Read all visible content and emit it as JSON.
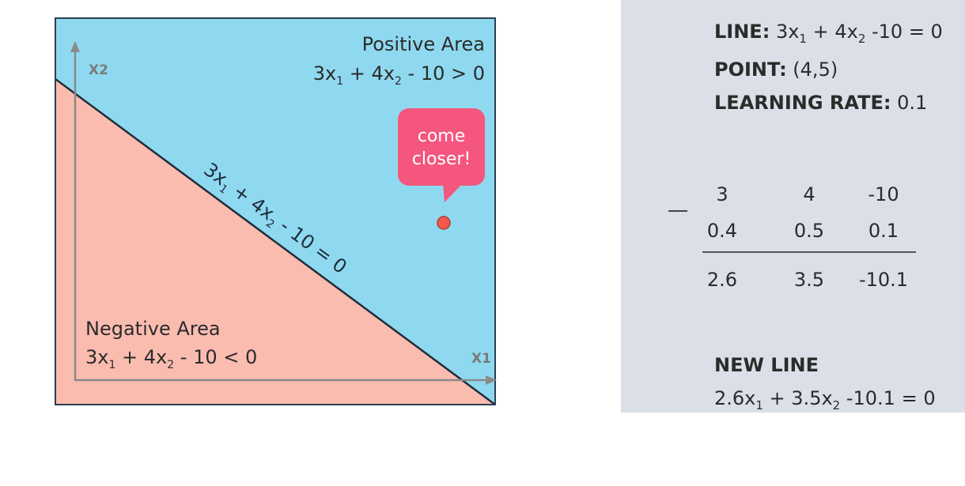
{
  "diagram": {
    "axis_x_label": "X1",
    "axis_y_label": "X2",
    "positive_area": {
      "title": "Positive Area",
      "expr_a": "3x",
      "sub1": "1",
      "expr_b": " + 4x",
      "sub2": "2",
      "expr_c": " - 10 > 0"
    },
    "negative_area": {
      "title": "Negative Area",
      "expr_a": "3x",
      "sub1": "1",
      "expr_b": " + 4x",
      "sub2": "2",
      "expr_c": " - 10 < 0"
    },
    "line_label": {
      "expr_a": "3x",
      "sub1": "1",
      "expr_b": " + 4x",
      "sub2": "2",
      "expr_c": " - 10 = 0"
    },
    "callout": {
      "line1": "come",
      "line2": "closer!"
    },
    "colors": {
      "positive": "#8fd9f0",
      "negative": "#fbbcb0",
      "point": "#f25a4e",
      "callout": "#f4567e",
      "border": "#2c3e50",
      "axis": "#8a8a8a"
    }
  },
  "panel": {
    "line": {
      "label": "LINE:",
      "expr_a": " 3x",
      "sub1": "1",
      "expr_b": " + 4x",
      "sub2": "2",
      "expr_c": " -10 = 0"
    },
    "point": {
      "label": "POINT:",
      "value": " (4,5)"
    },
    "rate": {
      "label": "LEARNING RATE:",
      "value": " 0.1"
    },
    "calc": {
      "row1": [
        "3",
        "4",
        "-10"
      ],
      "row2": [
        "0.4",
        "0.5",
        "0.1"
      ],
      "result": [
        "2.6",
        "3.5",
        "-10.1"
      ]
    },
    "new_line": {
      "label": "NEW LINE",
      "expr_a": "2.6x",
      "sub1": "1",
      "expr_b": " + 3.5x",
      "sub2": "2",
      "expr_c": " -10.1 = 0"
    }
  }
}
